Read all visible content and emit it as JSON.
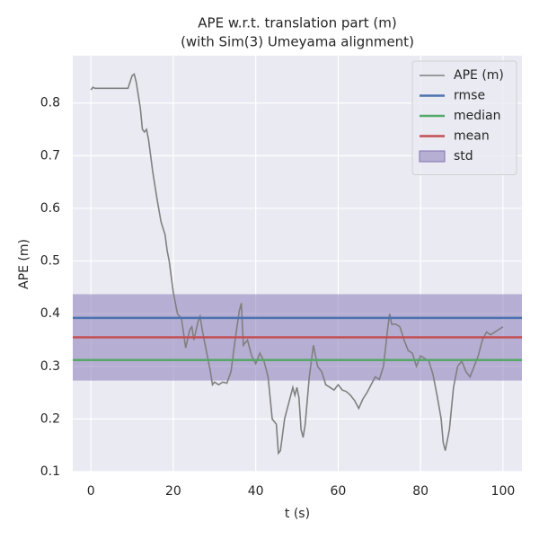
{
  "chart_data": {
    "type": "line",
    "title": "APE w.r.t. translation part (m)",
    "subtitle": "(with Sim(3) Umeyama alignment)",
    "x_label": "t (s)",
    "y_label": "APE (m)",
    "xlim": [
      -4.4,
      104.6
    ],
    "ylim": [
      0.1,
      0.89
    ],
    "xticks": [
      0,
      20,
      40,
      60,
      80,
      100
    ],
    "yticks": [
      0.1,
      0.2,
      0.3,
      0.4,
      0.5,
      0.6,
      0.7,
      0.8
    ],
    "grid": true,
    "legend": "upper right",
    "series": [
      {
        "name": "APE (m)",
        "color": "#808080",
        "x": [
          0,
          0.5,
          1,
          5,
          9,
          10,
          10.5,
          11,
          12,
          12.5,
          13,
          13.5,
          14,
          15,
          16,
          17,
          18,
          18.5,
          19,
          20,
          21,
          22,
          23,
          24,
          24.5,
          25,
          26,
          26.5,
          27,
          28,
          29,
          29.5,
          30,
          31,
          32,
          33,
          34,
          35,
          36,
          36.5,
          37,
          38,
          39,
          40,
          41,
          42,
          43,
          44,
          45,
          45.5,
          46,
          47,
          48,
          49,
          49.5,
          50,
          50.5,
          51,
          51.5,
          52,
          53,
          54,
          55,
          56,
          57,
          58,
          59,
          60,
          61,
          62,
          63,
          64,
          65,
          66,
          67,
          68,
          69,
          70,
          71,
          72,
          72.5,
          73,
          74,
          75,
          76,
          77,
          78,
          79,
          80,
          81,
          82,
          83,
          84,
          85,
          85.5,
          86,
          87,
          88,
          89,
          90,
          91,
          92,
          93,
          94,
          95,
          96,
          97,
          98,
          99,
          100
        ],
        "values": [
          0.825,
          0.83,
          0.828,
          0.828,
          0.828,
          0.852,
          0.855,
          0.84,
          0.79,
          0.75,
          0.745,
          0.75,
          0.73,
          0.67,
          0.62,
          0.575,
          0.55,
          0.52,
          0.5,
          0.44,
          0.4,
          0.39,
          0.335,
          0.37,
          0.375,
          0.35,
          0.385,
          0.395,
          0.37,
          0.33,
          0.29,
          0.265,
          0.27,
          0.265,
          0.27,
          0.268,
          0.29,
          0.35,
          0.405,
          0.42,
          0.34,
          0.35,
          0.32,
          0.305,
          0.325,
          0.31,
          0.28,
          0.2,
          0.19,
          0.135,
          0.14,
          0.2,
          0.23,
          0.26,
          0.245,
          0.26,
          0.24,
          0.18,
          0.165,
          0.19,
          0.28,
          0.34,
          0.3,
          0.29,
          0.265,
          0.26,
          0.255,
          0.265,
          0.255,
          0.252,
          0.245,
          0.235,
          0.22,
          0.238,
          0.25,
          0.265,
          0.28,
          0.275,
          0.3,
          0.37,
          0.4,
          0.38,
          0.38,
          0.375,
          0.35,
          0.33,
          0.325,
          0.3,
          0.32,
          0.315,
          0.31,
          0.285,
          0.245,
          0.2,
          0.155,
          0.14,
          0.18,
          0.26,
          0.3,
          0.31,
          0.29,
          0.28,
          0.3,
          0.32,
          0.35,
          0.365,
          0.36,
          0.365,
          0.37,
          0.375
        ]
      }
    ],
    "hlines": [
      {
        "name": "rmse",
        "color": "#4c72b0",
        "value": 0.392
      },
      {
        "name": "median",
        "color": "#55a868",
        "value": 0.312
      },
      {
        "name": "mean",
        "color": "#c44e52",
        "value": 0.355
      }
    ],
    "band": {
      "name": "std",
      "color": "#8172b3",
      "value": 0.082
    }
  }
}
